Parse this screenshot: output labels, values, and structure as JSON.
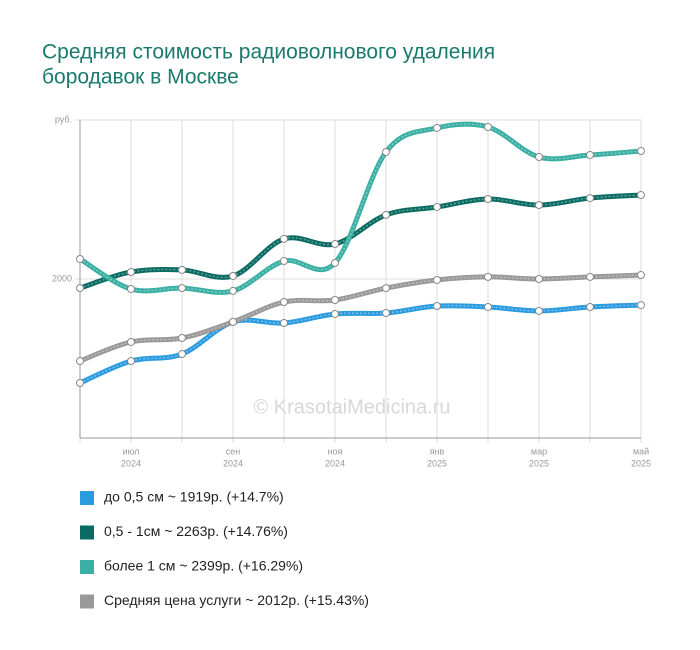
{
  "chart_data": {
    "type": "line",
    "title_lines": [
      "Средняя стоимость радиоволнового удаления",
      "бородавок в Москве"
    ],
    "watermark": "© KrasotaiMedicina.ru",
    "categories": [
      null,
      "июл",
      null,
      "сен",
      null,
      "ноя",
      null,
      "янв",
      null,
      "мар",
      null,
      "май"
    ],
    "category_years": [
      null,
      "2024",
      null,
      "2024",
      null,
      "2024",
      null,
      "2025",
      null,
      "2025",
      null,
      "2025"
    ],
    "ylim": [
      1000,
      3000
    ],
    "yticks": [
      {
        "value": 3000,
        "label": "руб."
      },
      2000
    ],
    "grid": true,
    "series": [
      {
        "name": "до 0,5 см ~ 1919р. (+14.7%)",
        "color": "#2b9be0",
        "values": [
          1346,
          1484,
          1528,
          1730,
          1723,
          1780,
          1786,
          1830,
          1824,
          1799,
          1824,
          1836
        ]
      },
      {
        "name": "0,5 - 1см ~ 2263р. (+14.76%)",
        "color": "#0a6b62",
        "values": [
          1943,
          2044,
          2057,
          2019,
          2252,
          2220,
          2403,
          2453,
          2503,
          2465,
          2509,
          2528
        ]
      },
      {
        "name": "более 1 см ~ 2399р. (+16.29%)",
        "color": "#3aafa3",
        "values": [
          2126,
          1937,
          1943,
          1925,
          2113,
          2101,
          2799,
          2950,
          2956,
          2767,
          2780,
          2805
        ]
      },
      {
        "name": "Средняя цена услуги ~ 2012р. (+15.43%)",
        "color": "#999999",
        "values": [
          1484,
          1604,
          1629,
          1730,
          1855,
          1868,
          1943,
          1994,
          2013,
          2000,
          2013,
          2025
        ]
      }
    ]
  }
}
